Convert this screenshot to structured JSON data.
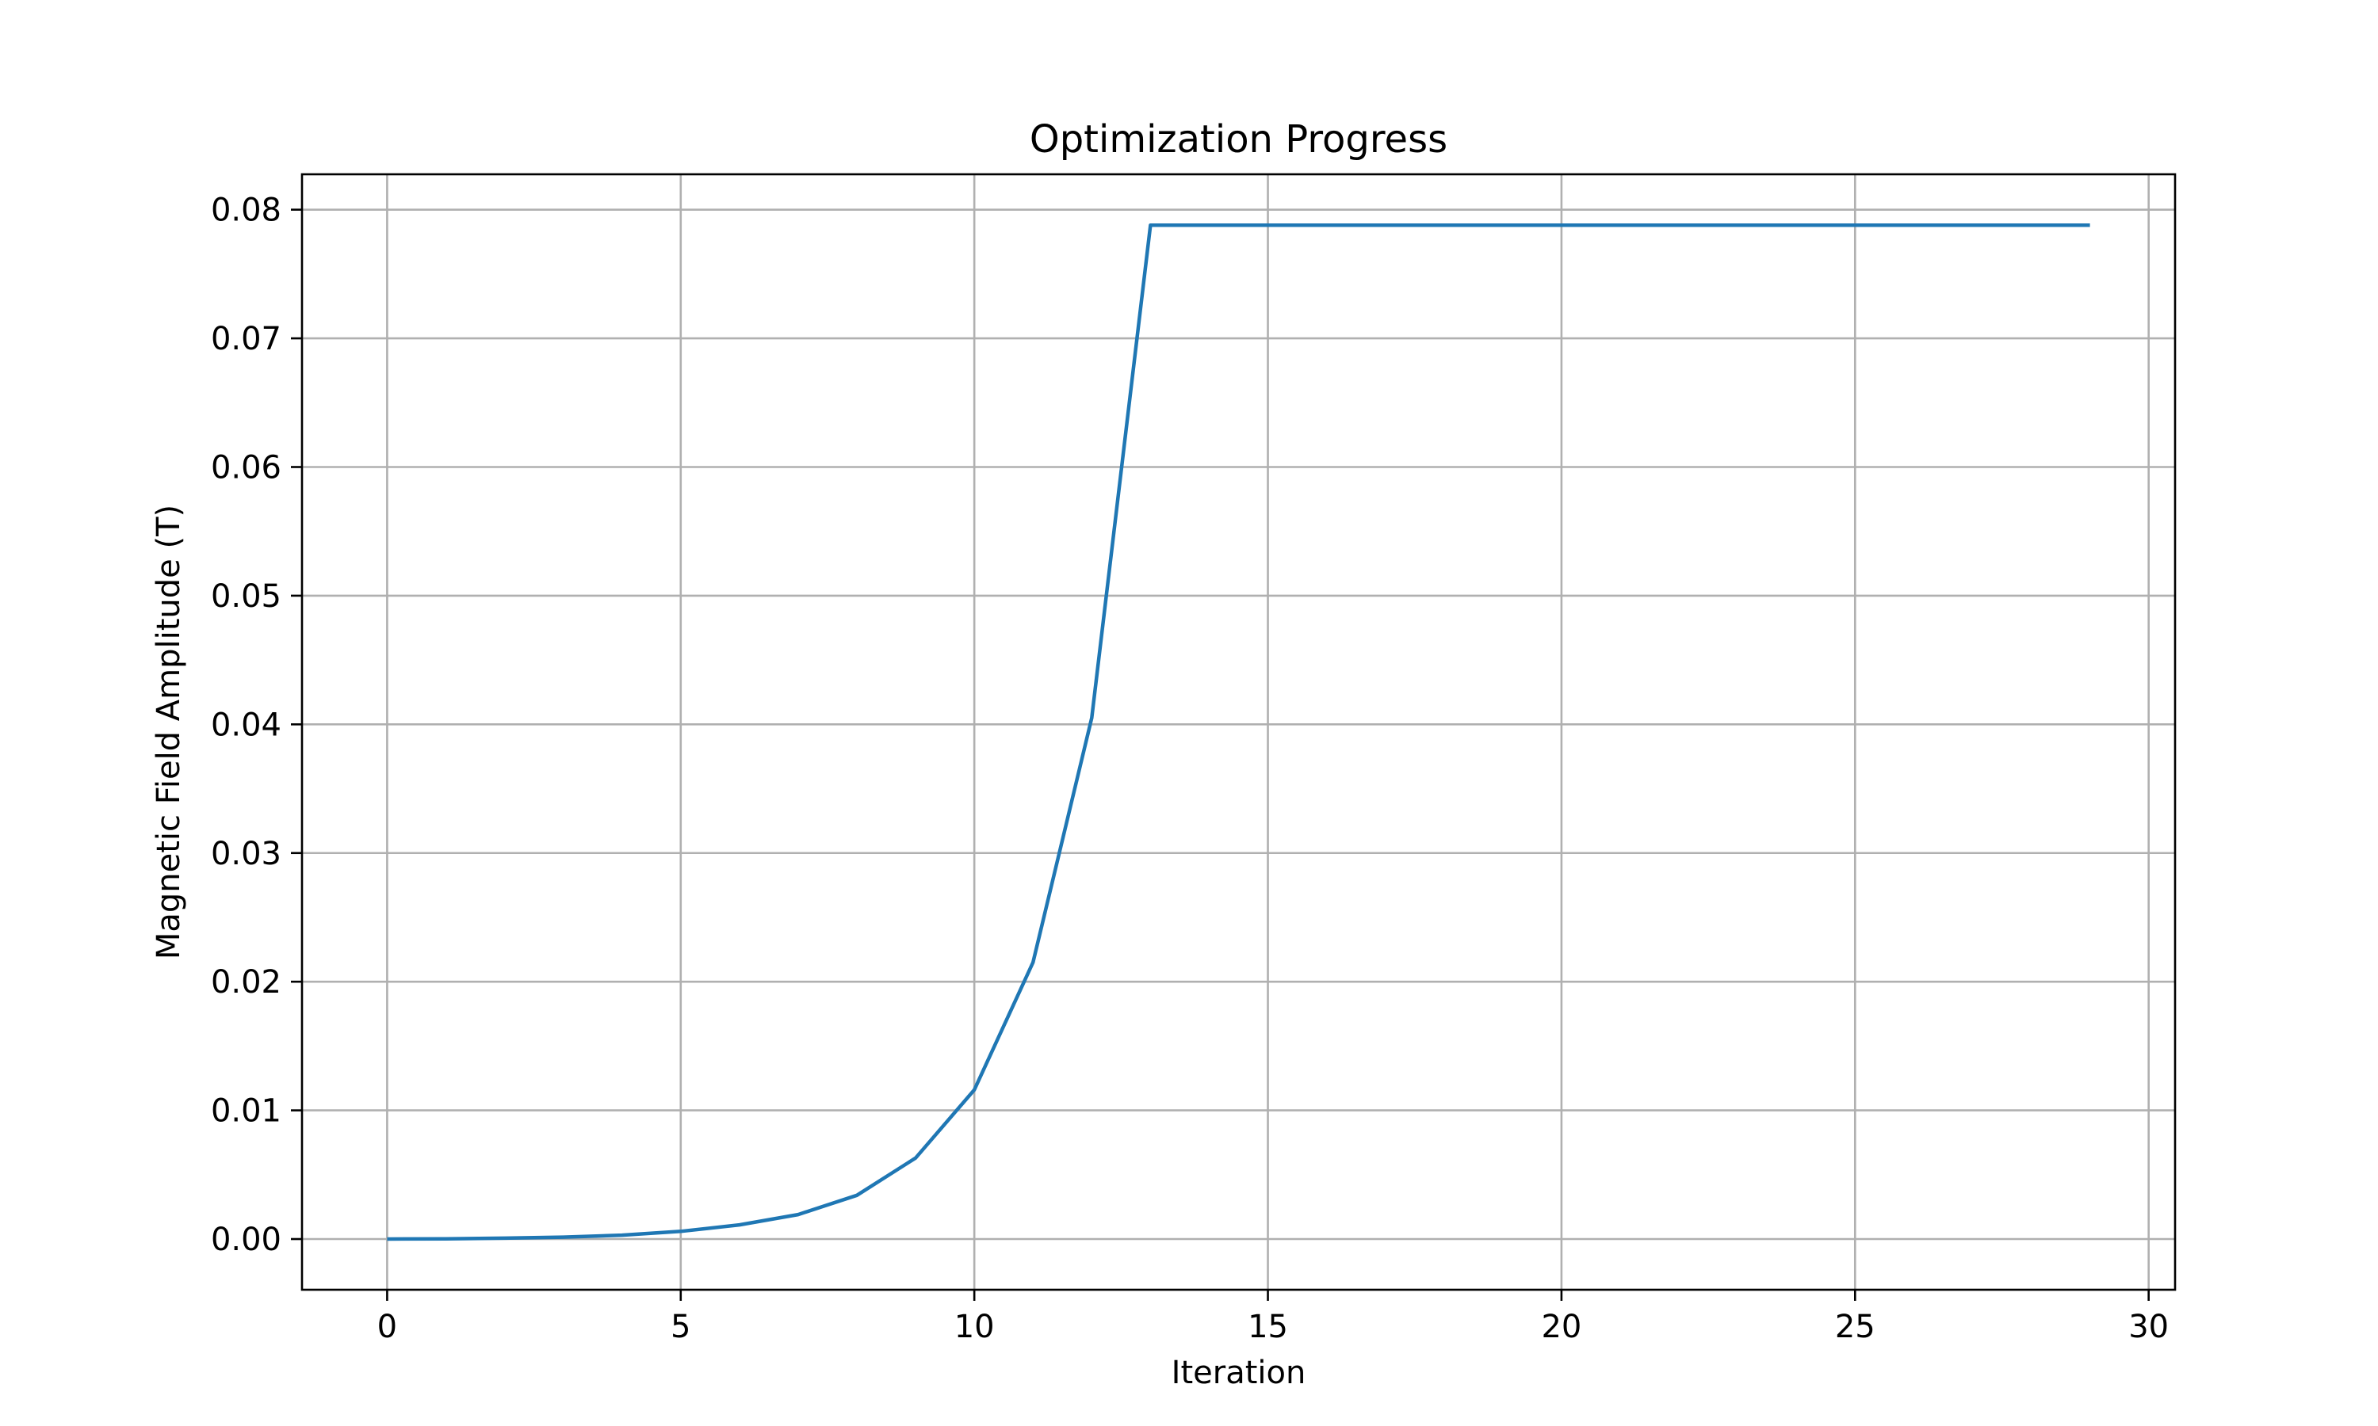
{
  "chart_data": {
    "type": "line",
    "title": "Optimization Progress",
    "xlabel": "Iteration",
    "ylabel": "Magnetic Field Amplitude (T)",
    "xlim": [
      -1.45,
      30.45
    ],
    "ylim": [
      -0.00394,
      0.08275
    ],
    "x_ticks": [
      0,
      5,
      10,
      15,
      20,
      25,
      30
    ],
    "x_tick_labels": [
      "0",
      "5",
      "10",
      "15",
      "20",
      "25",
      "30"
    ],
    "y_ticks": [
      0.0,
      0.01,
      0.02,
      0.03,
      0.04,
      0.05,
      0.06,
      0.07,
      0.08
    ],
    "y_tick_labels": [
      "0.00",
      "0.01",
      "0.02",
      "0.03",
      "0.04",
      "0.05",
      "0.06",
      "0.07",
      "0.08"
    ],
    "grid": true,
    "legend": "none",
    "series": [
      {
        "color": "#1f77b4",
        "x": [
          0,
          1,
          2,
          3,
          4,
          5,
          6,
          7,
          8,
          9,
          10,
          11,
          12,
          13,
          14,
          15,
          16,
          17,
          18,
          19,
          20,
          21,
          22,
          23,
          24,
          25,
          26,
          27,
          28,
          29
        ],
        "y": [
          0.0,
          2e-05,
          7e-05,
          0.00015,
          0.0003,
          0.0006,
          0.0011,
          0.0019,
          0.0034,
          0.0063,
          0.0116,
          0.0215,
          0.0405,
          0.0788,
          0.0788,
          0.0788,
          0.0788,
          0.0788,
          0.0788,
          0.0788,
          0.0788,
          0.0788,
          0.0788,
          0.0788,
          0.0788,
          0.0788,
          0.0788,
          0.0788,
          0.0788,
          0.0788
        ]
      }
    ]
  }
}
